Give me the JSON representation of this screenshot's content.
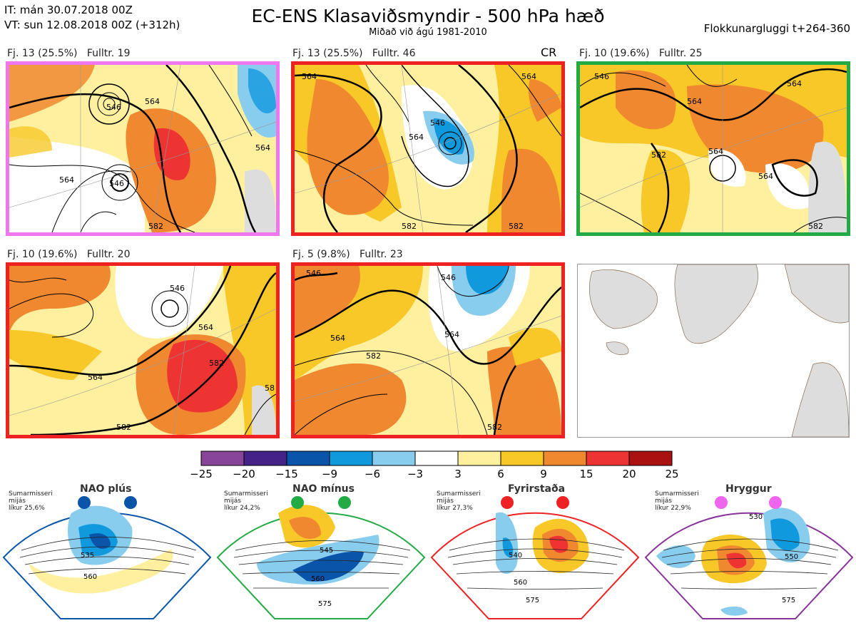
{
  "header": {
    "it": "IT: mán 30.07.2018 00Z",
    "vt": "VT: sun 12.08.2018 00Z  (+312h)",
    "title": "EC-ENS Klasaviðsmyndir - 500 hPa hæð",
    "subtitle": "Miðað við ágú 1981-2010",
    "window": "Flokkunargluggi t+264-360"
  },
  "panels": [
    {
      "label": "Fj. 13 (25.5%)   Fulltr. 19",
      "border": "#ee77ee",
      "contours": [
        "546",
        "564",
        "564",
        "582",
        "546",
        "564"
      ]
    },
    {
      "label": "Fj. 13 (25.5%)   Fulltr. 46",
      "border": "#ee2222",
      "badge": "CR",
      "contours": [
        "564",
        "546",
        "564",
        "582",
        "582",
        "564"
      ]
    },
    {
      "label": "Fj. 10 (19.6%)   Fulltr. 25",
      "border": "#22aa44",
      "contours": [
        "546",
        "564",
        "564",
        "582",
        "564",
        "564",
        "582"
      ]
    },
    {
      "label": "Fj. 10 (19.6%)   Fulltr. 20",
      "border": "#ee2222",
      "contours": [
        "546",
        "564",
        "564",
        "582",
        "582",
        "58"
      ]
    },
    {
      "label": "Fj. 5 (9.8%)   Fulltr. 23",
      "border": "#ee2222",
      "contours": [
        "546",
        "546",
        "564",
        "582",
        "564",
        "582"
      ]
    }
  ],
  "colorbar": {
    "ticks": [
      "−25",
      "−20",
      "−15",
      "−9",
      "−6",
      "−3",
      "3",
      "6",
      "9",
      "15",
      "20",
      "25"
    ],
    "colors": [
      "#884499",
      "#442288",
      "#0a55aa",
      "#1199dd",
      "#88ccee",
      "#ffffff",
      "#fff0a0",
      "#f8c828",
      "#f08830",
      "#ee3333",
      "#aa1111"
    ]
  },
  "regimes": [
    {
      "title": "NAO plús",
      "text1": "Sumarmisseri",
      "text2": "mijás",
      "text3": "líkur 25,6%",
      "color": "#0a55aa",
      "contours": [
        "535",
        "560"
      ]
    },
    {
      "title": "NAO mínus",
      "text1": "Sumarmisseri",
      "text2": "mijás",
      "text3": "líkur 24,2%",
      "color": "#22aa44",
      "contours": [
        "545",
        "560",
        "575"
      ]
    },
    {
      "title": "Fyrirstaða",
      "text1": "Sumarmisseri",
      "text2": "mijás",
      "text3": "líkur 27,3%",
      "color": "#ee2222",
      "contours": [
        "540",
        "560",
        "575"
      ]
    },
    {
      "title": "Hryggur",
      "text1": "Sumarmisseri",
      "text2": "mijás",
      "text3": "líkur 22,9%",
      "color": "#ee66ee",
      "contours": [
        "530",
        "550",
        "575"
      ]
    }
  ]
}
